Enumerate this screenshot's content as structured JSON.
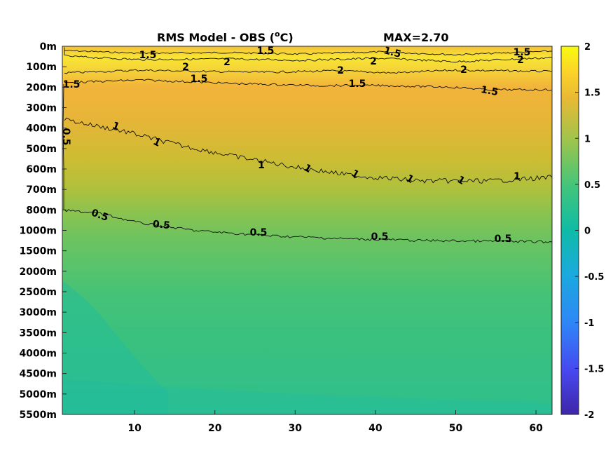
{
  "chart_data": {
    "type": "heatmap",
    "title": "RMS Model - OBS (",
    "title_unit_sup": "o",
    "title_unit": "C)",
    "max_label": "MAX=2.70",
    "xlabel": "",
    "ylabel": "",
    "x_range": [
      1,
      62
    ],
    "x_ticks": [
      10,
      20,
      30,
      40,
      50,
      60
    ],
    "x_tick_labels": [
      "10",
      "20",
      "30",
      "40",
      "50",
      "60"
    ],
    "y_tick_labels": [
      "0m",
      "100m",
      "200m",
      "300m",
      "400m",
      "500m",
      "600m",
      "700m",
      "800m",
      "1000m",
      "1500m",
      "2000m",
      "2500m",
      "3000m",
      "3500m",
      "4000m",
      "4500m",
      "5000m",
      "5500m"
    ],
    "y_direction": "depth increasing downward",
    "colorbar": {
      "range": [
        -2,
        2
      ],
      "ticks": [
        2,
        1.5,
        1,
        0.5,
        0,
        -0.5,
        -1,
        -1.5,
        -2
      ],
      "tick_labels": [
        "2",
        "1.5",
        "1",
        "0.5",
        "0",
        "-0.5",
        "-1",
        "-1.5",
        "-2"
      ],
      "colormap": "parula",
      "colors": [
        "#3e26a8",
        "#4748f0",
        "#2e87f7",
        "#1aa9de",
        "#0fbba6",
        "#42c57a",
        "#a2c44b",
        "#e9b934",
        "#fbd32a",
        "#f9fb0e"
      ]
    },
    "contour_levels": [
      0.5,
      1,
      1.5,
      2
    ],
    "contours": [
      {
        "level": 2,
        "labels": [
          "2",
          "2",
          "2",
          "2",
          "2",
          "2"
        ]
      },
      {
        "level": 1.5,
        "labels": [
          "1.5",
          "1.5",
          "1.5",
          "1.5",
          "1.5",
          "1.5",
          "1.5",
          "1.5",
          "1.5"
        ]
      },
      {
        "level": 1,
        "labels": [
          "1",
          "1",
          "1",
          "1",
          "1",
          "1",
          "1",
          "1"
        ]
      },
      {
        "level": 0.5,
        "labels": [
          "0.5",
          "0.5",
          "0.5",
          "0.5",
          "0.5",
          "0.5",
          "0.5"
        ]
      }
    ],
    "profile_by_depth": [
      {
        "depth": "0m",
        "value": 1.7
      },
      {
        "depth": "100m",
        "value": 1.95
      },
      {
        "depth": "200m",
        "value": 1.5
      },
      {
        "depth": "300m",
        "value": 1.3
      },
      {
        "depth": "400m",
        "value": 1.15
      },
      {
        "depth": "500m",
        "value": 1.05
      },
      {
        "depth": "600m",
        "value": 0.98
      },
      {
        "depth": "700m",
        "value": 0.85
      },
      {
        "depth": "800m",
        "value": 0.72
      },
      {
        "depth": "1000m",
        "value": 0.55
      },
      {
        "depth": "1500m",
        "value": 0.42
      },
      {
        "depth": "2000m",
        "value": 0.33
      },
      {
        "depth": "2500m",
        "value": 0.28
      },
      {
        "depth": "3000m",
        "value": 0.25
      },
      {
        "depth": "3500m",
        "value": 0.23
      },
      {
        "depth": "4000m",
        "value": 0.22
      },
      {
        "depth": "4500m",
        "value": 0.22
      },
      {
        "depth": "5000m",
        "value": 0.21
      },
      {
        "depth": "5500m",
        "value": 0.18
      }
    ]
  }
}
